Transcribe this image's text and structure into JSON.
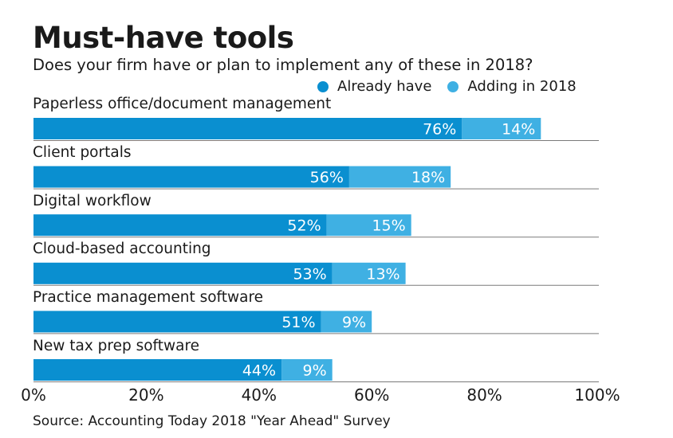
{
  "chart_data": {
    "type": "bar",
    "orientation": "horizontal",
    "stacked": true,
    "title": "Must-have tools",
    "subtitle": "Does your firm have or plan to implement any of these in 2018?",
    "categories": [
      "Paperless office/document management",
      "Client portals",
      "Digital workflow",
      "Cloud-based accounting",
      "Practice management software",
      "New tax prep software"
    ],
    "series": [
      {
        "name": "Already have",
        "color": "#0a8fd0",
        "values": [
          76,
          56,
          52,
          53,
          51,
          44
        ],
        "labels": [
          "76%",
          "56%",
          "52%",
          "53%",
          "51%",
          "44%"
        ]
      },
      {
        "name": "Adding in 2018",
        "color": "#3fb0e3",
        "values": [
          14,
          18,
          15,
          13,
          9,
          9
        ],
        "labels": [
          "14%",
          "18%",
          "15%",
          "13%",
          "9%",
          "9%"
        ]
      }
    ],
    "xlim": [
      0,
      100
    ],
    "xticks": [
      "0%",
      "20%",
      "40%",
      "60%",
      "80%",
      "100%"
    ],
    "xtick_values": [
      0,
      20,
      40,
      60,
      80,
      100
    ],
    "legend_position": "top-right",
    "source": "Source: Accounting Today 2018 \"Year Ahead\" Survey"
  }
}
